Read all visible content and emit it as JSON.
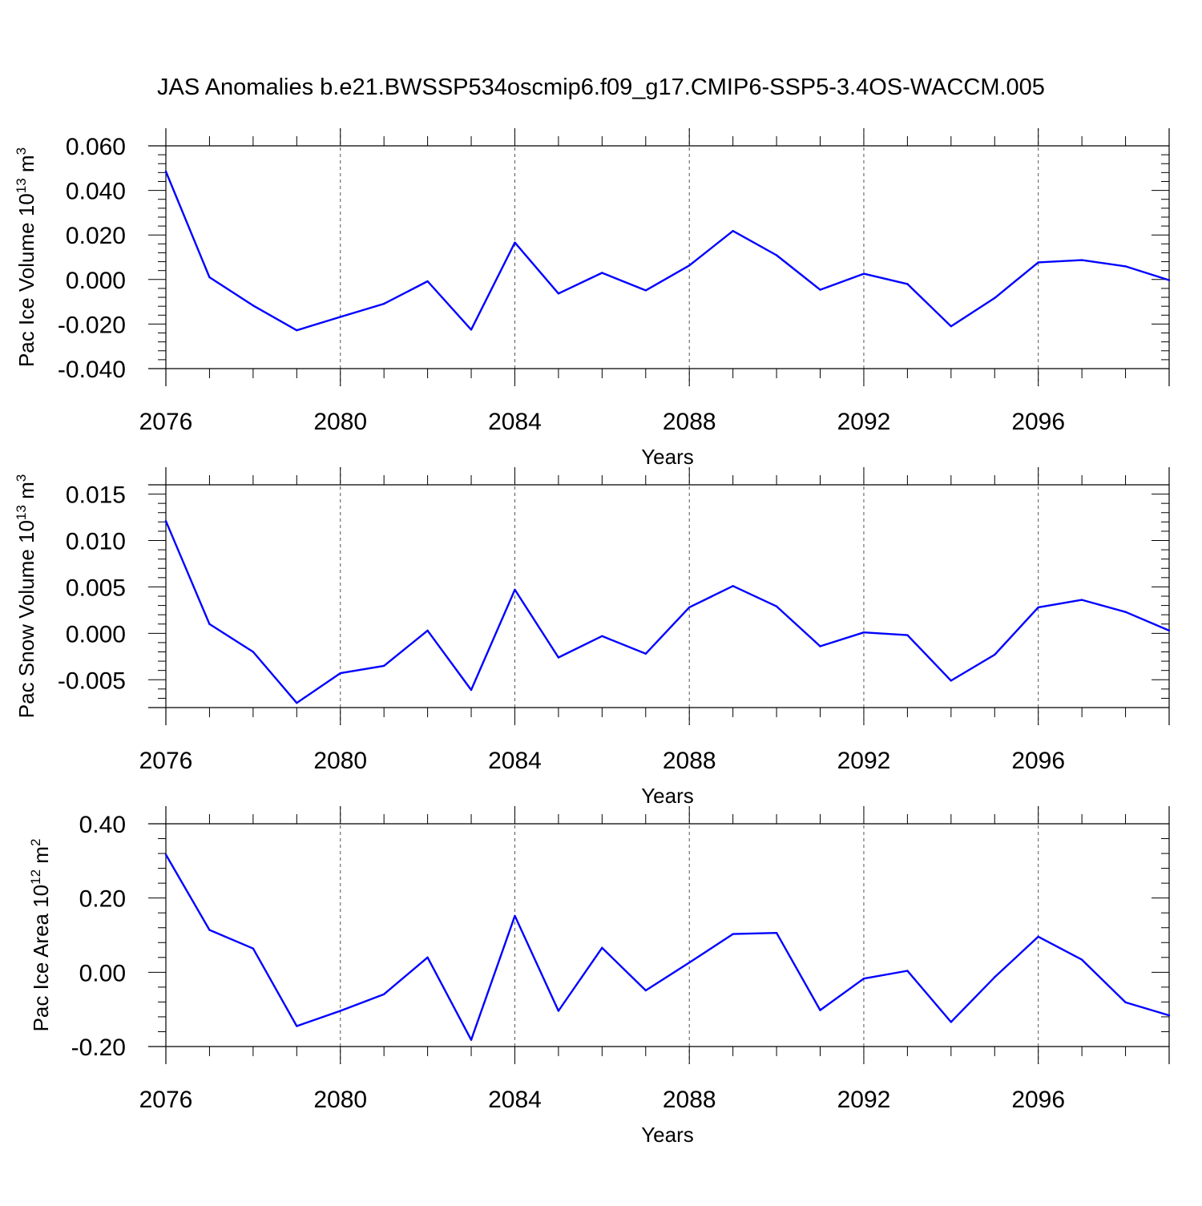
{
  "title": "JAS Anomalies b.e21.BWSSP534oscmip6.f09_g17.CMIP6-SSP5-3.4OS-WACCM.005",
  "colors": {
    "series": "#0000ff",
    "axis": "#000000",
    "grid": "#555555"
  },
  "chart_data": [
    {
      "type": "line",
      "ylabel_main": "Pac Ice Volume 10",
      "ylabel_exp": "13",
      "ylabel_unit": " m",
      "ylabel_unit_exp": "3",
      "xlabel": "Years",
      "xlim": [
        2076,
        2099
      ],
      "ylim": [
        -0.04,
        0.06
      ],
      "yticks": [
        0.06,
        0.04,
        0.02,
        0.0,
        -0.02,
        -0.04
      ],
      "ytick_labels": [
        "0.060",
        "0.040",
        "0.020",
        "0.000",
        "-0.020",
        "-0.040"
      ],
      "xticks": [
        2076,
        2080,
        2084,
        2088,
        2092,
        2096
      ],
      "xtick_labels": [
        "2076",
        "2080",
        "2084",
        "2088",
        "2092",
        "2096"
      ],
      "x": [
        2076,
        2077,
        2078,
        2079,
        2080,
        2081,
        2082,
        2083,
        2084,
        2085,
        2086,
        2087,
        2088,
        2089,
        2090,
        2091,
        2092,
        2093,
        2094,
        2095,
        2096,
        2097,
        2098,
        2099
      ],
      "values": [
        0.0485,
        0.001,
        -0.0117,
        -0.0228,
        -0.0168,
        -0.0109,
        -0.0008,
        -0.0225,
        0.0166,
        -0.0063,
        0.003,
        -0.0049,
        0.0063,
        0.0218,
        0.0109,
        -0.0046,
        0.0026,
        -0.002,
        -0.021,
        -0.0083,
        0.0077,
        0.0087,
        0.0059,
        -0.0003
      ]
    },
    {
      "type": "line",
      "ylabel_main": "Pac Snow Volume 10",
      "ylabel_exp": "13",
      "ylabel_unit": " m",
      "ylabel_unit_exp": "3",
      "xlabel": "Years",
      "xlim": [
        2076,
        2099
      ],
      "ylim": [
        -0.008,
        0.016
      ],
      "yticks": [
        0.015,
        0.01,
        0.005,
        0.0,
        -0.005
      ],
      "ytick_labels": [
        "0.015",
        "0.010",
        "0.005",
        "0.000",
        "-0.005"
      ],
      "xticks": [
        2076,
        2080,
        2084,
        2088,
        2092,
        2096
      ],
      "xtick_labels": [
        "2076",
        "2080",
        "2084",
        "2088",
        "2092",
        "2096"
      ],
      "x": [
        2076,
        2077,
        2078,
        2079,
        2080,
        2081,
        2082,
        2083,
        2084,
        2085,
        2086,
        2087,
        2088,
        2089,
        2090,
        2091,
        2092,
        2093,
        2094,
        2095,
        2096,
        2097,
        2098,
        2099
      ],
      "values": [
        0.0121,
        0.001,
        -0.002,
        -0.0075,
        -0.0043,
        -0.0035,
        0.0003,
        -0.0061,
        0.0047,
        -0.0026,
        -0.0003,
        -0.0022,
        0.0028,
        0.0051,
        0.0029,
        -0.0014,
        0.0001,
        -0.0002,
        -0.0051,
        -0.0023,
        0.0028,
        0.0036,
        0.0023,
        0.0003
      ]
    },
    {
      "type": "line",
      "ylabel_main": "Pac Ice Area 10",
      "ylabel_exp": "12",
      "ylabel_unit": " m",
      "ylabel_unit_exp": "2",
      "xlabel": "Years",
      "xlim": [
        2076,
        2099
      ],
      "ylim": [
        -0.2,
        0.4
      ],
      "yticks": [
        0.4,
        0.2,
        0.0,
        -0.2
      ],
      "ytick_labels": [
        "0.40",
        "0.20",
        "0.00",
        "-0.20"
      ],
      "xticks": [
        2076,
        2080,
        2084,
        2088,
        2092,
        2096
      ],
      "xtick_labels": [
        "2076",
        "2080",
        "2084",
        "2088",
        "2092",
        "2096"
      ],
      "x": [
        2076,
        2077,
        2078,
        2079,
        2080,
        2081,
        2082,
        2083,
        2084,
        2085,
        2086,
        2087,
        2088,
        2089,
        2090,
        2091,
        2092,
        2093,
        2094,
        2095,
        2096,
        2097,
        2098,
        2099
      ],
      "values": [
        0.317,
        0.114,
        0.064,
        -0.145,
        -0.104,
        -0.059,
        0.04,
        -0.182,
        0.152,
        -0.104,
        0.066,
        -0.049,
        0.026,
        0.103,
        0.106,
        -0.102,
        -0.017,
        0.004,
        -0.134,
        -0.013,
        0.096,
        0.034,
        -0.081,
        -0.116
      ]
    }
  ]
}
